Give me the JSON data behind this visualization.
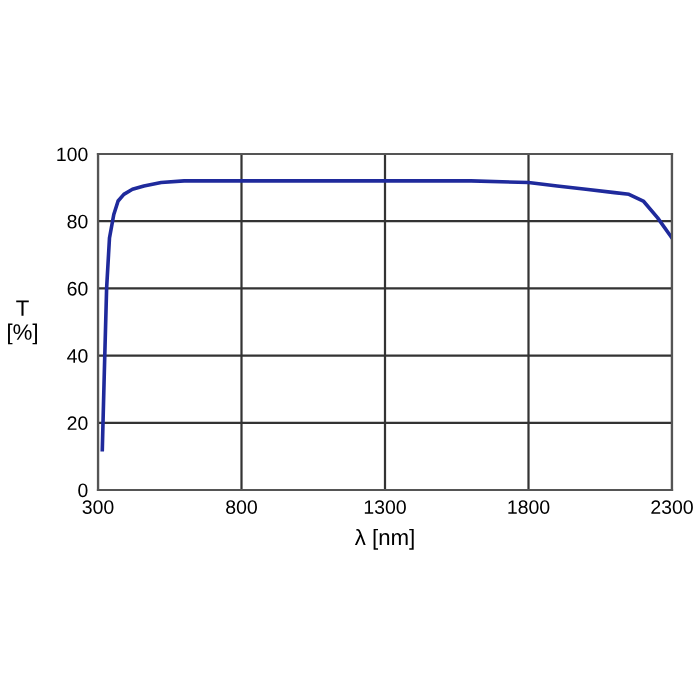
{
  "chart_data": {
    "type": "line",
    "xlabel": "λ [nm]",
    "ylabel": "T\n[%]",
    "x": [
      315,
      322,
      330,
      340,
      355,
      370,
      390,
      420,
      460,
      520,
      600,
      800,
      1000,
      1300,
      1600,
      1800,
      1900,
      2000,
      2100,
      2150,
      2200,
      2250,
      2300
    ],
    "series": [
      {
        "color": "#1f2a9c",
        "values": [
          12,
          35,
          60,
          75,
          82,
          86,
          88,
          89.5,
          90.5,
          91.5,
          92,
          92,
          92,
          92,
          92,
          91.5,
          90.5,
          89.5,
          88.5,
          88,
          86,
          81,
          75
        ]
      }
    ],
    "xlim": [
      300,
      2300
    ],
    "xticks": [
      300,
      800,
      1300,
      1800,
      2300
    ],
    "ylim": [
      0,
      100
    ],
    "yticks": [
      0,
      20,
      40,
      60,
      80,
      100
    ],
    "grid": true
  }
}
